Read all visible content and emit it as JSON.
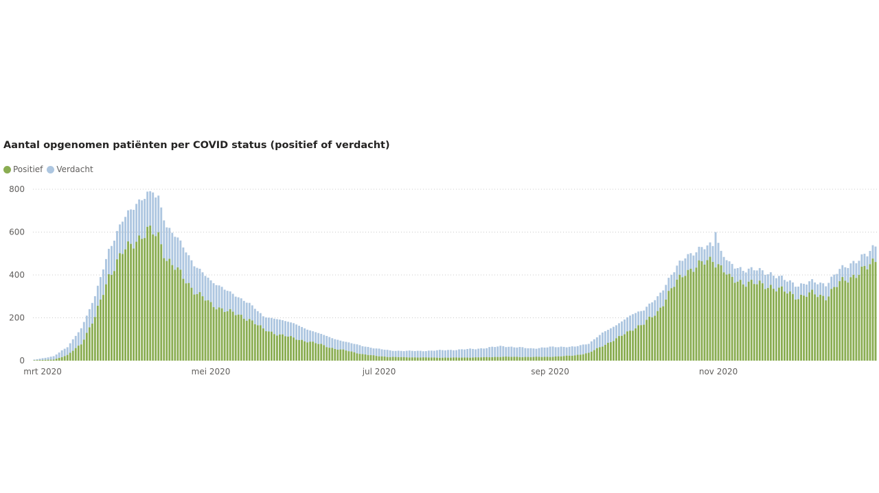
{
  "chart_data": {
    "type": "bar",
    "stacked": true,
    "title": "Aantal opgenomen patiënten per COVID status (positief of verdacht)",
    "legend_position": "top-left",
    "grid": true,
    "colors": {
      "Positief": "#8aad52",
      "Verdacht": "#adc6e0"
    },
    "x_start": "2020-02-27",
    "x_end": "2020-12-28",
    "x_ticks": [
      {
        "date": "2020-03-01",
        "label": "mrt 2020"
      },
      {
        "date": "2020-05-01",
        "label": "mei 2020"
      },
      {
        "date": "2020-07-01",
        "label": "jul 2020"
      },
      {
        "date": "2020-09-01",
        "label": "sep 2020"
      },
      {
        "date": "2020-11-01",
        "label": "nov 2020"
      }
    ],
    "ylim": [
      0,
      800
    ],
    "y_ticks": [
      0,
      200,
      400,
      600,
      800
    ],
    "keypoints": {
      "Positief": [
        [
          "2020-02-27",
          2
        ],
        [
          "2020-03-05",
          5
        ],
        [
          "2020-03-10",
          25
        ],
        [
          "2020-03-15",
          80
        ],
        [
          "2020-03-20",
          200
        ],
        [
          "2020-03-25",
          400
        ],
        [
          "2020-03-30",
          500
        ],
        [
          "2020-04-04",
          570
        ],
        [
          "2020-04-08",
          600
        ],
        [
          "2020-04-12",
          580
        ],
        [
          "2020-04-15",
          480
        ],
        [
          "2020-04-20",
          400
        ],
        [
          "2020-04-25",
          330
        ],
        [
          "2020-05-01",
          260
        ],
        [
          "2020-05-05",
          245
        ],
        [
          "2020-05-10",
          215
        ],
        [
          "2020-05-15",
          195
        ],
        [
          "2020-05-20",
          145
        ],
        [
          "2020-05-25",
          125
        ],
        [
          "2020-05-31",
          105
        ],
        [
          "2020-06-05",
          90
        ],
        [
          "2020-06-10",
          75
        ],
        [
          "2020-06-15",
          55
        ],
        [
          "2020-06-20",
          45
        ],
        [
          "2020-06-25",
          30
        ],
        [
          "2020-06-30",
          22
        ],
        [
          "2020-07-05",
          17
        ],
        [
          "2020-07-15",
          15
        ],
        [
          "2020-07-25",
          14
        ],
        [
          "2020-08-05",
          15
        ],
        [
          "2020-08-15",
          18
        ],
        [
          "2020-08-25",
          17
        ],
        [
          "2020-09-01",
          18
        ],
        [
          "2020-09-05",
          20
        ],
        [
          "2020-09-10",
          25
        ],
        [
          "2020-09-15",
          35
        ],
        [
          "2020-09-20",
          70
        ],
        [
          "2020-09-25",
          100
        ],
        [
          "2020-10-01",
          150
        ],
        [
          "2020-10-05",
          170
        ],
        [
          "2020-10-10",
          230
        ],
        [
          "2020-10-15",
          330
        ],
        [
          "2020-10-20",
          420
        ],
        [
          "2020-10-25",
          440
        ],
        [
          "2020-10-30",
          480
        ],
        [
          "2020-11-03",
          420
        ],
        [
          "2020-11-05",
          380
        ],
        [
          "2020-11-10",
          370
        ],
        [
          "2020-11-15",
          355
        ],
        [
          "2020-11-20",
          350
        ],
        [
          "2020-11-25",
          320
        ],
        [
          "2020-11-30",
          300
        ],
        [
          "2020-12-05",
          310
        ],
        [
          "2020-12-10",
          300
        ],
        [
          "2020-12-15",
          360
        ],
        [
          "2020-12-20",
          400
        ],
        [
          "2020-12-25",
          430
        ],
        [
          "2020-12-28",
          470
        ]
      ],
      "Verdacht": [
        [
          "2020-02-27",
          3
        ],
        [
          "2020-03-05",
          15
        ],
        [
          "2020-03-10",
          40
        ],
        [
          "2020-03-15",
          70
        ],
        [
          "2020-03-20",
          100
        ],
        [
          "2020-03-25",
          120
        ],
        [
          "2020-03-30",
          150
        ],
        [
          "2020-04-04",
          170
        ],
        [
          "2020-04-08",
          175
        ],
        [
          "2020-04-12",
          180
        ],
        [
          "2020-04-15",
          150
        ],
        [
          "2020-04-20",
          150
        ],
        [
          "2020-04-25",
          120
        ],
        [
          "2020-05-01",
          110
        ],
        [
          "2020-05-05",
          100
        ],
        [
          "2020-05-10",
          85
        ],
        [
          "2020-05-15",
          75
        ],
        [
          "2020-05-20",
          60
        ],
        [
          "2020-05-25",
          70
        ],
        [
          "2020-05-31",
          70
        ],
        [
          "2020-06-05",
          55
        ],
        [
          "2020-06-10",
          50
        ],
        [
          "2020-06-15",
          45
        ],
        [
          "2020-06-20",
          40
        ],
        [
          "2020-06-25",
          38
        ],
        [
          "2020-06-30",
          35
        ],
        [
          "2020-07-05",
          30
        ],
        [
          "2020-07-15",
          30
        ],
        [
          "2020-07-25",
          35
        ],
        [
          "2020-08-05",
          40
        ],
        [
          "2020-08-15",
          50
        ],
        [
          "2020-08-25",
          40
        ],
        [
          "2020-09-01",
          45
        ],
        [
          "2020-09-05",
          45
        ],
        [
          "2020-09-10",
          40
        ],
        [
          "2020-09-15",
          45
        ],
        [
          "2020-09-20",
          60
        ],
        [
          "2020-09-25",
          65
        ],
        [
          "2020-10-01",
          70
        ],
        [
          "2020-10-05",
          65
        ],
        [
          "2020-10-10",
          70
        ],
        [
          "2020-10-15",
          65
        ],
        [
          "2020-10-20",
          75
        ],
        [
          "2020-10-25",
          70
        ],
        [
          "2020-10-30",
          70
        ],
        [
          "2020-11-03",
          70
        ],
        [
          "2020-11-05",
          65
        ],
        [
          "2020-11-10",
          60
        ],
        [
          "2020-11-15",
          65
        ],
        [
          "2020-11-20",
          60
        ],
        [
          "2020-11-25",
          55
        ],
        [
          "2020-11-30",
          55
        ],
        [
          "2020-12-05",
          55
        ],
        [
          "2020-12-10",
          60
        ],
        [
          "2020-12-15",
          60
        ],
        [
          "2020-12-20",
          65
        ],
        [
          "2020-12-25",
          60
        ],
        [
          "2020-12-28",
          70
        ]
      ]
    },
    "spikes": [
      {
        "date": "2020-10-31",
        "total": 600
      },
      {
        "date": "2020-11-01",
        "total": 550
      },
      {
        "date": "2020-04-10",
        "total": 785
      }
    ]
  }
}
